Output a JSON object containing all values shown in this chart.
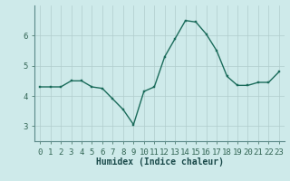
{
  "x": [
    0,
    1,
    2,
    3,
    4,
    5,
    6,
    7,
    8,
    9,
    10,
    11,
    12,
    13,
    14,
    15,
    16,
    17,
    18,
    19,
    20,
    21,
    22,
    23
  ],
  "y": [
    4.3,
    4.3,
    4.3,
    4.5,
    4.5,
    4.3,
    4.25,
    3.9,
    3.55,
    3.05,
    4.15,
    4.3,
    5.3,
    5.9,
    6.5,
    6.45,
    6.05,
    5.5,
    4.65,
    4.35,
    4.35,
    4.45,
    4.45,
    4.8
  ],
  "xlabel": "Humidex (Indice chaleur)",
  "ylim": [
    2.5,
    7.0
  ],
  "xlim": [
    -0.5,
    23.5
  ],
  "yticks": [
    3,
    4,
    5,
    6
  ],
  "xticks": [
    0,
    1,
    2,
    3,
    4,
    5,
    6,
    7,
    8,
    9,
    10,
    11,
    12,
    13,
    14,
    15,
    16,
    17,
    18,
    19,
    20,
    21,
    22,
    23
  ],
  "line_color": "#1a6b5a",
  "marker_color": "#1a6b5a",
  "bg_color": "#ceeaea",
  "grid_color": "#b0cccc",
  "spine_color": "#5a8888",
  "tick_color": "#336655",
  "label_color": "#1a4a4a",
  "xlabel_fontsize": 7,
  "tick_fontsize": 6.5
}
